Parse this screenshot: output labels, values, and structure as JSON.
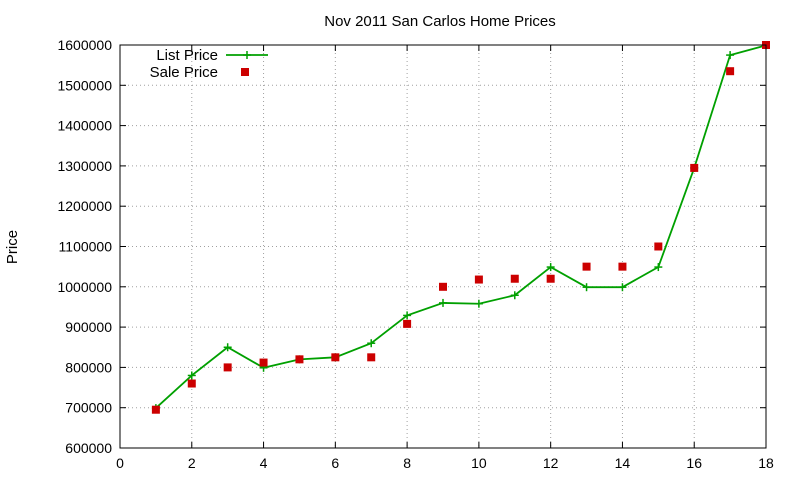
{
  "chart_data": {
    "type": "line",
    "title": "Nov 2011 San Carlos Home Prices",
    "xlabel": "",
    "ylabel": "Price",
    "xlim": [
      0,
      18
    ],
    "ylim": [
      600000,
      1600000
    ],
    "xticks": [
      0,
      2,
      4,
      6,
      8,
      10,
      12,
      14,
      16,
      18
    ],
    "yticks": [
      600000,
      700000,
      800000,
      900000,
      1000000,
      1100000,
      1200000,
      1300000,
      1400000,
      1500000,
      1600000
    ],
    "grid": true,
    "legend_position": "top-left",
    "series": [
      {
        "name": "List Price",
        "style": "linespoints",
        "marker": "plus",
        "color": "#00a000",
        "x": [
          1,
          2,
          3,
          4,
          5,
          6,
          7,
          8,
          9,
          10,
          11,
          12,
          13,
          14,
          15,
          16,
          17,
          18
        ],
        "y": [
          699000,
          780000,
          850000,
          799000,
          820000,
          825000,
          860000,
          929000,
          960000,
          958000,
          979000,
          1049000,
          999000,
          999000,
          1049000,
          1295000,
          1575000,
          1599000
        ]
      },
      {
        "name": "Sale Price",
        "style": "points",
        "marker": "square",
        "color": "#cc0000",
        "x": [
          1,
          2,
          3,
          4,
          5,
          6,
          7,
          8,
          9,
          10,
          11,
          12,
          13,
          14,
          15,
          16,
          17,
          18
        ],
        "y": [
          695000,
          760000,
          800000,
          812000,
          820000,
          825000,
          825000,
          908000,
          1000000,
          1018000,
          1020000,
          1020000,
          1050000,
          1050000,
          1100000,
          1295000,
          1535000,
          1600000
        ]
      }
    ]
  }
}
